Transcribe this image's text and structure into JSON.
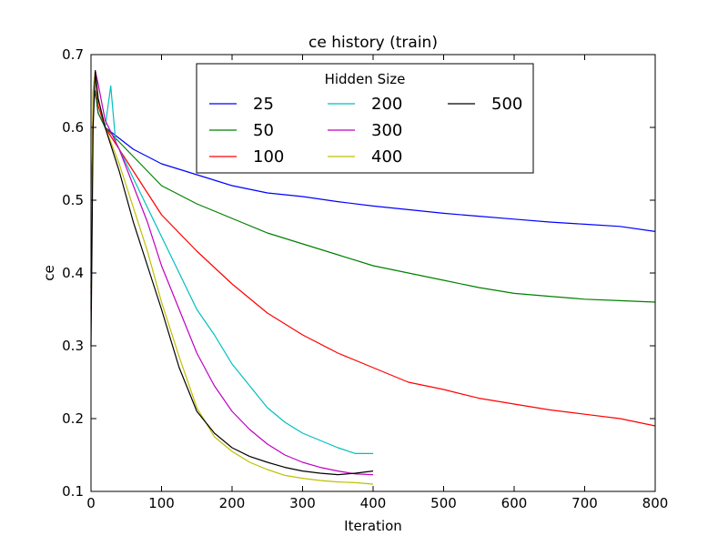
{
  "chart_data": {
    "type": "line",
    "title": "ce history (train)",
    "xlabel": "Iteration",
    "ylabel": "ce",
    "xlim": [
      0,
      800
    ],
    "ylim": [
      0.1,
      0.7
    ],
    "xticks": [
      0,
      100,
      200,
      300,
      400,
      500,
      600,
      700,
      800
    ],
    "yticks": [
      0.1,
      0.2,
      0.3,
      0.4,
      0.5,
      0.6,
      0.7
    ],
    "xtick_labels": [
      "0",
      "100",
      "200",
      "300",
      "400",
      "500",
      "600",
      "700",
      "800"
    ],
    "ytick_labels": [
      "0.1",
      "0.2",
      "0.3",
      "0.4",
      "0.5",
      "0.6",
      "0.7"
    ],
    "grid": false,
    "legend": {
      "title": "Hidden Size",
      "placement": "top-center",
      "columns": 3
    },
    "series": [
      {
        "name": "25",
        "color": "#0000ff",
        "x": [
          0,
          3,
          6,
          10,
          20,
          40,
          60,
          80,
          100,
          150,
          200,
          250,
          300,
          350,
          400,
          450,
          500,
          550,
          600,
          650,
          700,
          750,
          800
        ],
        "y": [
          0.4,
          0.63,
          0.65,
          0.62,
          0.6,
          0.585,
          0.57,
          0.56,
          0.55,
          0.535,
          0.52,
          0.51,
          0.505,
          0.498,
          0.492,
          0.487,
          0.482,
          0.478,
          0.474,
          0.47,
          0.467,
          0.464,
          0.457
        ]
      },
      {
        "name": "50",
        "color": "#008000",
        "x": [
          0,
          3,
          6,
          10,
          20,
          40,
          60,
          80,
          100,
          150,
          200,
          250,
          300,
          350,
          400,
          450,
          500,
          550,
          600,
          650,
          700,
          750,
          800
        ],
        "y": [
          0.38,
          0.63,
          0.65,
          0.62,
          0.6,
          0.58,
          0.56,
          0.54,
          0.52,
          0.495,
          0.475,
          0.455,
          0.44,
          0.425,
          0.41,
          0.4,
          0.39,
          0.38,
          0.372,
          0.368,
          0.364,
          0.362,
          0.36
        ]
      },
      {
        "name": "100",
        "color": "#ff0000",
        "x": [
          0,
          3,
          6,
          10,
          20,
          40,
          60,
          80,
          100,
          150,
          200,
          250,
          300,
          350,
          400,
          450,
          500,
          550,
          600,
          650,
          700,
          750,
          800
        ],
        "y": [
          0.35,
          0.64,
          0.67,
          0.63,
          0.6,
          0.57,
          0.54,
          0.51,
          0.48,
          0.43,
          0.385,
          0.345,
          0.315,
          0.29,
          0.27,
          0.25,
          0.24,
          0.228,
          0.22,
          0.212,
          0.206,
          0.2,
          0.19
        ]
      },
      {
        "name": "200",
        "color": "#00bfbf",
        "x": [
          0,
          3,
          6,
          10,
          20,
          28,
          35,
          50,
          75,
          100,
          125,
          150,
          175,
          200,
          225,
          250,
          275,
          300,
          325,
          350,
          375,
          400
        ],
        "y": [
          0.36,
          0.64,
          0.67,
          0.64,
          0.6,
          0.657,
          0.58,
          0.55,
          0.5,
          0.45,
          0.4,
          0.35,
          0.315,
          0.275,
          0.245,
          0.215,
          0.195,
          0.18,
          0.17,
          0.16,
          0.152,
          0.152
        ]
      },
      {
        "name": "300",
        "color": "#bf00bf",
        "x": [
          0,
          3,
          6,
          10,
          20,
          40,
          60,
          80,
          100,
          125,
          150,
          175,
          200,
          225,
          250,
          275,
          300,
          325,
          350,
          375,
          400
        ],
        "y": [
          0.37,
          0.65,
          0.678,
          0.66,
          0.61,
          0.57,
          0.52,
          0.47,
          0.41,
          0.35,
          0.29,
          0.245,
          0.21,
          0.185,
          0.165,
          0.15,
          0.14,
          0.133,
          0.128,
          0.124,
          0.123
        ]
      },
      {
        "name": "400",
        "color": "#bfbf00",
        "x": [
          0,
          3,
          6,
          10,
          20,
          40,
          60,
          80,
          100,
          125,
          150,
          175,
          200,
          225,
          250,
          275,
          300,
          325,
          350,
          375,
          400
        ],
        "y": [
          0.38,
          0.65,
          0.678,
          0.64,
          0.6,
          0.55,
          0.49,
          0.43,
          0.36,
          0.285,
          0.215,
          0.175,
          0.155,
          0.14,
          0.13,
          0.122,
          0.118,
          0.115,
          0.113,
          0.112,
          0.11
        ]
      },
      {
        "name": "500",
        "color": "#000000",
        "x": [
          0,
          3,
          6,
          10,
          20,
          40,
          60,
          80,
          100,
          125,
          150,
          175,
          200,
          225,
          250,
          275,
          300,
          325,
          350,
          375,
          400
        ],
        "y": [
          0.3,
          0.6,
          0.678,
          0.64,
          0.6,
          0.54,
          0.47,
          0.41,
          0.35,
          0.27,
          0.21,
          0.18,
          0.16,
          0.148,
          0.14,
          0.133,
          0.128,
          0.125,
          0.123,
          0.125,
          0.128
        ]
      }
    ]
  }
}
